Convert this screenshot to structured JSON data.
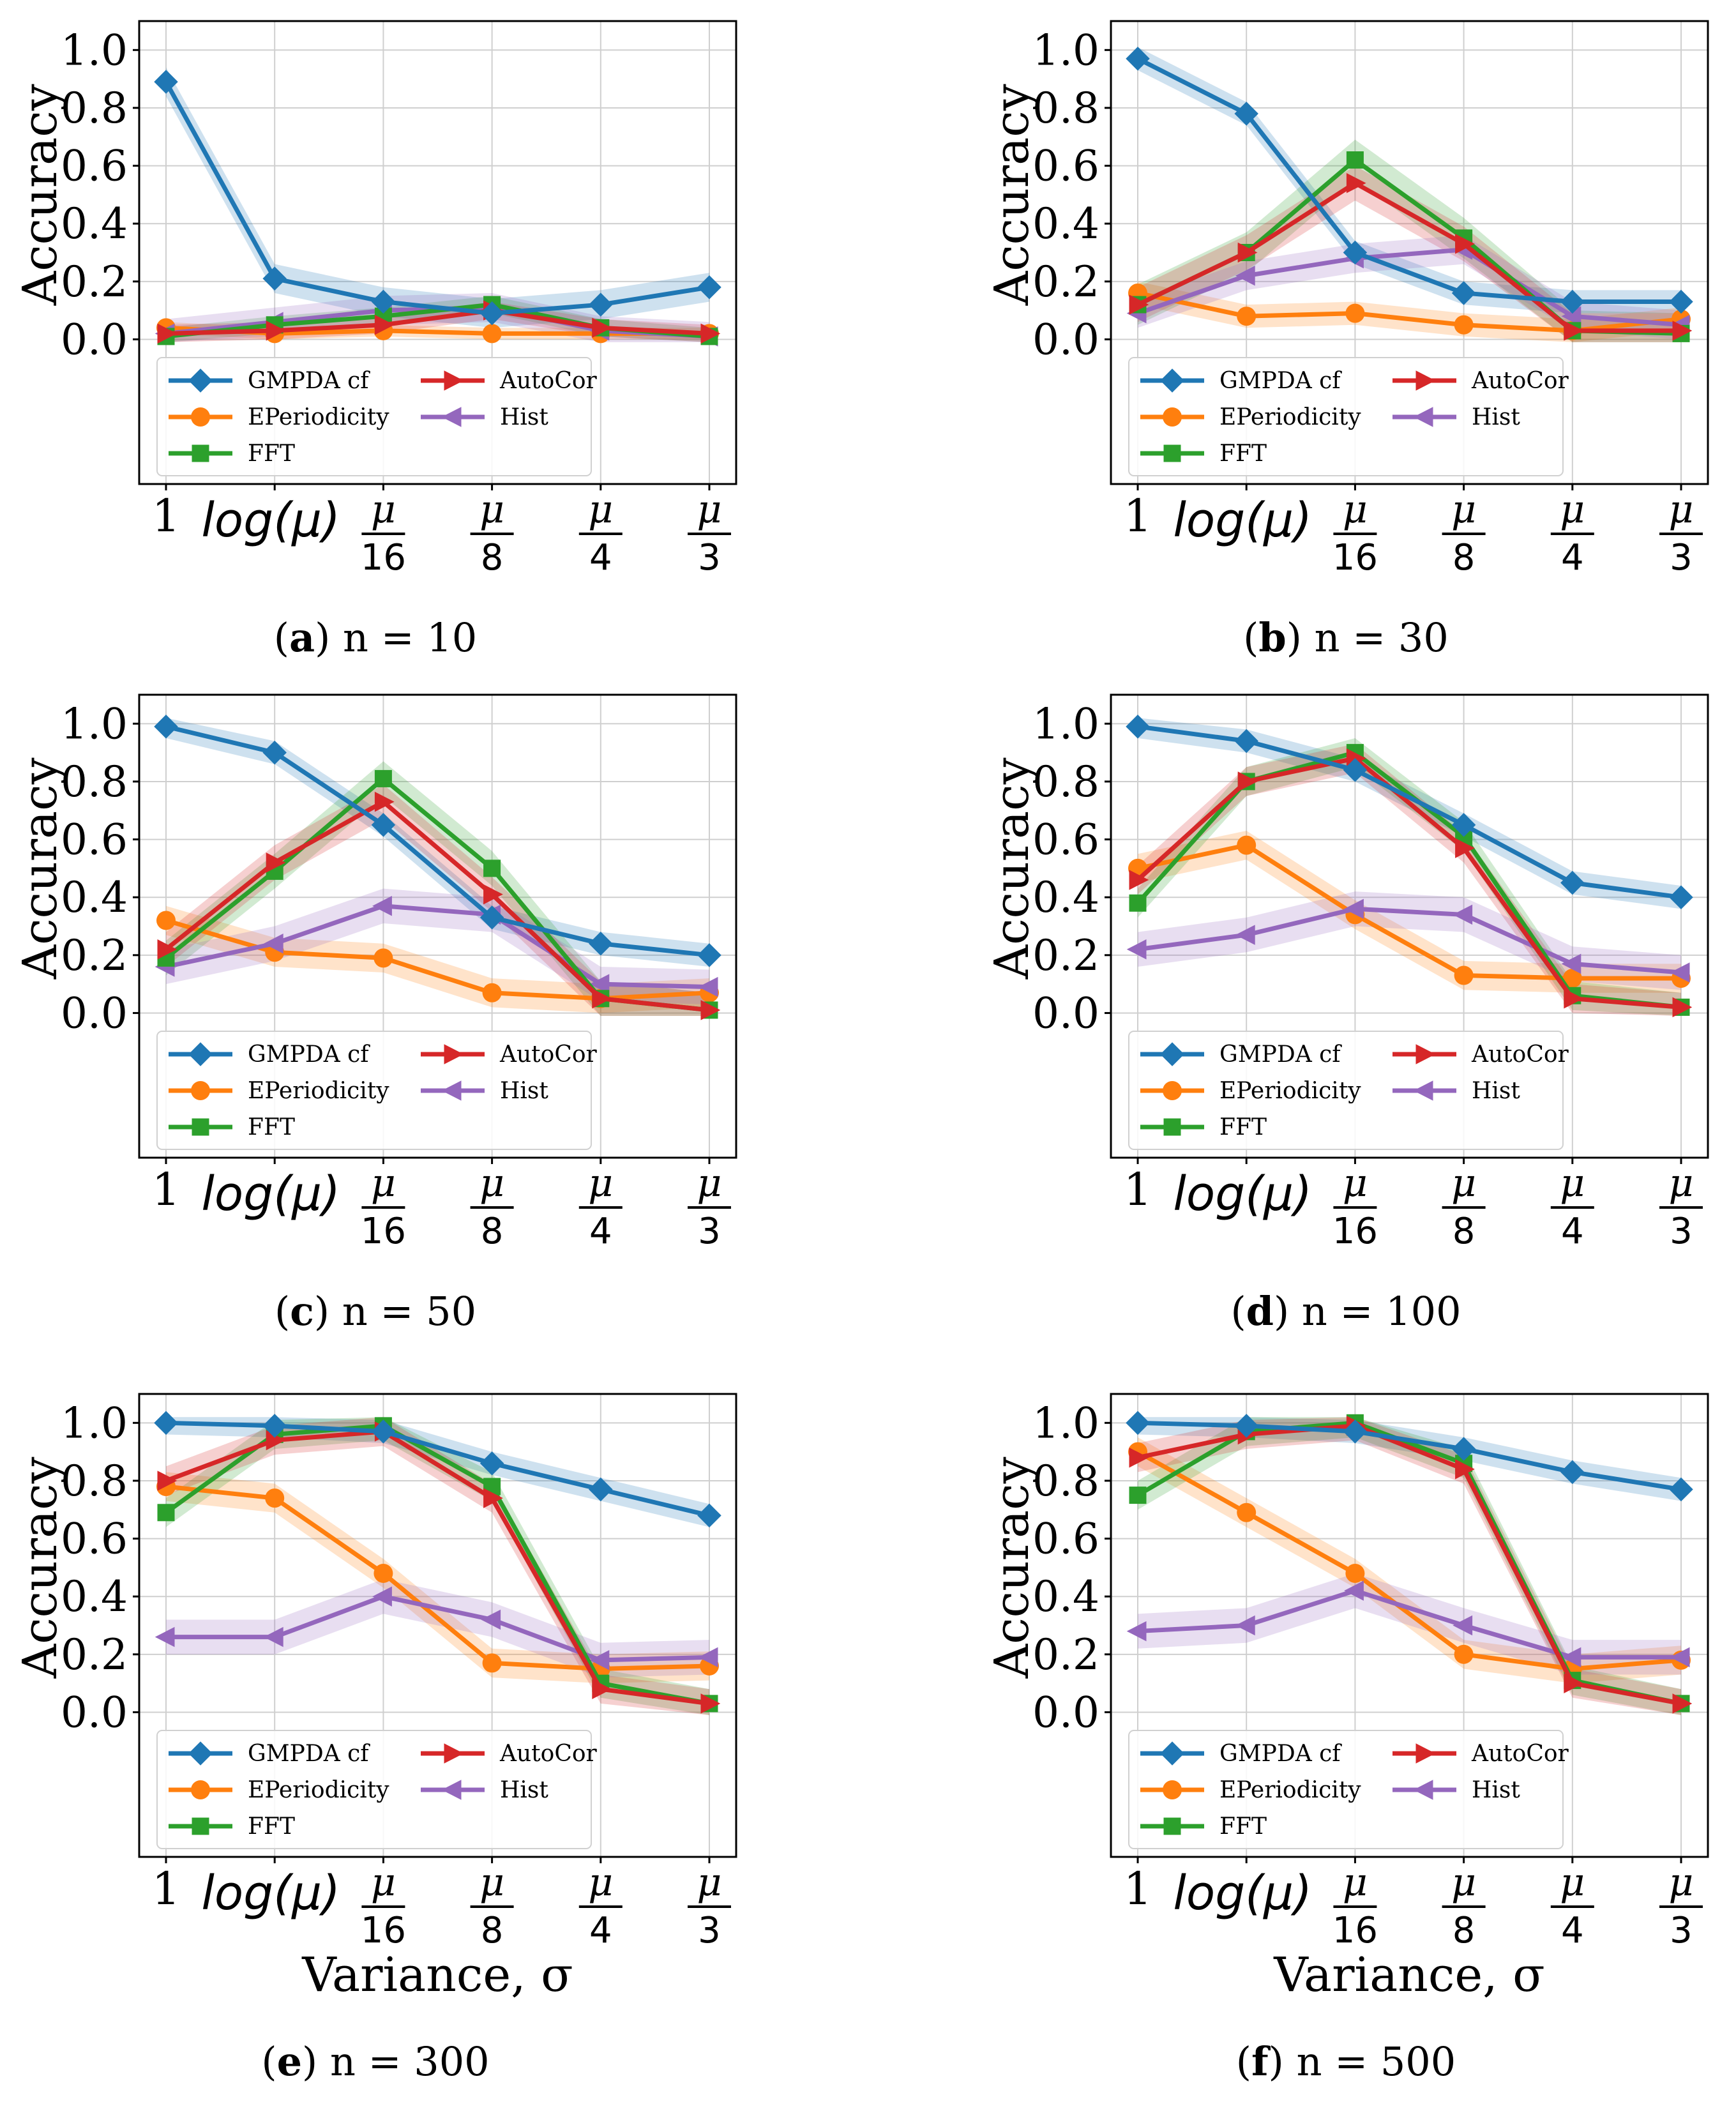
{
  "shared": {
    "ylabel": "Accuracy",
    "xlabel": "Variance, σ",
    "x_tick_labels": [
      "1",
      "log(μ)",
      "μ/16",
      "μ/8",
      "μ/4",
      "μ/3"
    ],
    "y_tick_labels": [
      "0.0",
      "0.2",
      "0.4",
      "0.6",
      "0.8",
      "1.0"
    ],
    "mu_symbol": "μ",
    "sigma_symbol": "σ",
    "legend_labels": [
      "GMPDA cf",
      "EPeriodicity",
      "FFT",
      "AutoCor",
      "Hist"
    ],
    "colors": {
      "GMPDA cf": "#1f77b4",
      "EPeriodicity": "#ff7f0e",
      "FFT": "#2ca02c",
      "AutoCor": "#d62728",
      "Hist": "#9467bd"
    }
  },
  "chart_data": [
    {
      "type": "line",
      "caption_letter": "(a)",
      "caption_text": " n = 10",
      "ylabel": "Accuracy",
      "categories": [
        "1",
        "log(μ)",
        "μ/16",
        "μ/8",
        "μ/4",
        "μ/3"
      ],
      "ylim": [
        -0.5,
        1.1
      ],
      "grid": true,
      "legend": "lower-left",
      "series": [
        {
          "name": "GMPDA cf",
          "values": [
            0.89,
            0.21,
            0.13,
            0.09,
            0.12,
            0.18
          ],
          "band": 0.05
        },
        {
          "name": "EPeriodicity",
          "values": [
            0.04,
            0.02,
            0.03,
            0.02,
            0.02,
            0.02
          ],
          "band": 0.02
        },
        {
          "name": "FFT",
          "values": [
            0.01,
            0.05,
            0.08,
            0.12,
            0.04,
            0.01
          ],
          "band": 0.03
        },
        {
          "name": "AutoCor",
          "values": [
            0.02,
            0.03,
            0.05,
            0.1,
            0.04,
            0.02
          ],
          "band": 0.03
        },
        {
          "name": "Hist",
          "values": [
            0.02,
            0.06,
            0.1,
            0.11,
            0.03,
            0.01
          ],
          "band": 0.05
        }
      ]
    },
    {
      "type": "line",
      "caption_letter": "(b)",
      "caption_text": " n = 30",
      "ylabel": "Accuracy",
      "categories": [
        "1",
        "log(μ)",
        "μ/16",
        "μ/8",
        "μ/4",
        "μ/3"
      ],
      "ylim": [
        -0.5,
        1.1
      ],
      "grid": true,
      "legend": "lower-left",
      "series": [
        {
          "name": "GMPDA cf",
          "values": [
            0.97,
            0.78,
            0.3,
            0.16,
            0.13,
            0.13
          ],
          "band": 0.04
        },
        {
          "name": "EPeriodicity",
          "values": [
            0.16,
            0.08,
            0.09,
            0.05,
            0.03,
            0.07
          ],
          "band": 0.04
        },
        {
          "name": "FFT",
          "values": [
            0.12,
            0.3,
            0.62,
            0.35,
            0.03,
            0.02
          ],
          "band": 0.07
        },
        {
          "name": "AutoCor",
          "values": [
            0.12,
            0.3,
            0.54,
            0.33,
            0.03,
            0.03
          ],
          "band": 0.06
        },
        {
          "name": "Hist",
          "values": [
            0.09,
            0.22,
            0.28,
            0.31,
            0.08,
            0.05
          ],
          "band": 0.05
        }
      ]
    },
    {
      "type": "line",
      "caption_letter": "(c)",
      "caption_text": " n = 50",
      "ylabel": "Accuracy",
      "categories": [
        "1",
        "log(μ)",
        "μ/16",
        "μ/8",
        "μ/4",
        "μ/3"
      ],
      "ylim": [
        -0.5,
        1.1
      ],
      "grid": true,
      "legend": "lower-left",
      "series": [
        {
          "name": "GMPDA cf",
          "values": [
            0.99,
            0.9,
            0.65,
            0.33,
            0.24,
            0.2
          ],
          "band": 0.04
        },
        {
          "name": "EPeriodicity",
          "values": [
            0.32,
            0.21,
            0.19,
            0.07,
            0.05,
            0.07
          ],
          "band": 0.05
        },
        {
          "name": "FFT",
          "values": [
            0.19,
            0.49,
            0.81,
            0.5,
            0.05,
            0.01
          ],
          "band": 0.06
        },
        {
          "name": "AutoCor",
          "values": [
            0.22,
            0.52,
            0.73,
            0.41,
            0.05,
            0.01
          ],
          "band": 0.06
        },
        {
          "name": "Hist",
          "values": [
            0.16,
            0.24,
            0.37,
            0.34,
            0.1,
            0.09
          ],
          "band": 0.06
        }
      ]
    },
    {
      "type": "line",
      "caption_letter": "(d)",
      "caption_text": " n = 100",
      "ylabel": "Accuracy",
      "categories": [
        "1",
        "log(μ)",
        "μ/16",
        "μ/8",
        "μ/4",
        "μ/3"
      ],
      "ylim": [
        -0.5,
        1.1
      ],
      "grid": true,
      "legend": "lower-left",
      "series": [
        {
          "name": "GMPDA cf",
          "values": [
            0.99,
            0.94,
            0.84,
            0.65,
            0.45,
            0.4
          ],
          "band": 0.04
        },
        {
          "name": "EPeriodicity",
          "values": [
            0.5,
            0.58,
            0.34,
            0.13,
            0.12,
            0.12
          ],
          "band": 0.05
        },
        {
          "name": "FFT",
          "values": [
            0.38,
            0.8,
            0.9,
            0.61,
            0.06,
            0.02
          ],
          "band": 0.05
        },
        {
          "name": "AutoCor",
          "values": [
            0.46,
            0.8,
            0.88,
            0.57,
            0.05,
            0.02
          ],
          "band": 0.05
        },
        {
          "name": "Hist",
          "values": [
            0.22,
            0.27,
            0.36,
            0.34,
            0.17,
            0.14
          ],
          "band": 0.06
        }
      ]
    },
    {
      "type": "line",
      "caption_letter": "(e)",
      "caption_text": " n = 300",
      "ylabel": "Accuracy",
      "xlabel": "Variance, σ",
      "categories": [
        "1",
        "log(μ)",
        "μ/16",
        "μ/8",
        "μ/4",
        "μ/3"
      ],
      "ylim": [
        -0.5,
        1.1
      ],
      "grid": true,
      "legend": "lower-left",
      "series": [
        {
          "name": "GMPDA cf",
          "values": [
            1.0,
            0.99,
            0.97,
            0.86,
            0.77,
            0.68
          ],
          "band": 0.04
        },
        {
          "name": "EPeriodicity",
          "values": [
            0.78,
            0.74,
            0.48,
            0.17,
            0.15,
            0.16
          ],
          "band": 0.05
        },
        {
          "name": "FFT",
          "values": [
            0.69,
            0.96,
            0.99,
            0.78,
            0.1,
            0.03
          ],
          "band": 0.05
        },
        {
          "name": "AutoCor",
          "values": [
            0.8,
            0.94,
            0.97,
            0.74,
            0.08,
            0.03
          ],
          "band": 0.05
        },
        {
          "name": "Hist",
          "values": [
            0.26,
            0.26,
            0.4,
            0.32,
            0.18,
            0.19
          ],
          "band": 0.06
        }
      ]
    },
    {
      "type": "line",
      "caption_letter": "(f)",
      "caption_text": " n = 500",
      "ylabel": "Accuracy",
      "xlabel": "Variance, σ",
      "categories": [
        "1",
        "log(μ)",
        "μ/16",
        "μ/8",
        "μ/4",
        "μ/3"
      ],
      "ylim": [
        -0.5,
        1.1
      ],
      "grid": true,
      "legend": "lower-left",
      "series": [
        {
          "name": "GMPDA cf",
          "values": [
            1.0,
            0.99,
            0.97,
            0.91,
            0.83,
            0.77
          ],
          "band": 0.04
        },
        {
          "name": "EPeriodicity",
          "values": [
            0.9,
            0.69,
            0.48,
            0.2,
            0.15,
            0.18
          ],
          "band": 0.05
        },
        {
          "name": "FFT",
          "values": [
            0.75,
            0.97,
            1.0,
            0.86,
            0.11,
            0.03
          ],
          "band": 0.05
        },
        {
          "name": "AutoCor",
          "values": [
            0.88,
            0.96,
            0.99,
            0.84,
            0.1,
            0.03
          ],
          "band": 0.05
        },
        {
          "name": "Hist",
          "values": [
            0.28,
            0.3,
            0.42,
            0.3,
            0.19,
            0.19
          ],
          "band": 0.06
        }
      ]
    }
  ]
}
